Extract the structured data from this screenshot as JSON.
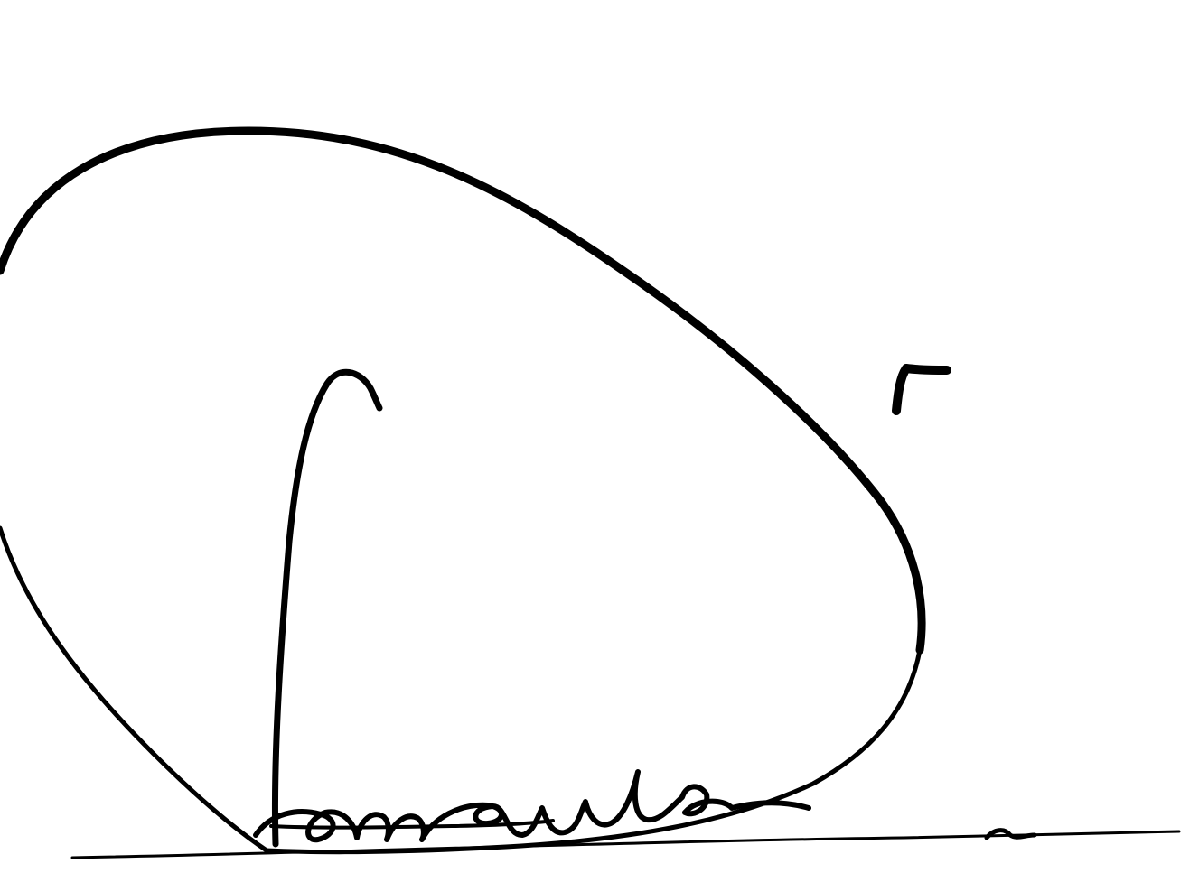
{
  "signature": {
    "ink_color": "#000000",
    "background_color": "#ffffff"
  }
}
